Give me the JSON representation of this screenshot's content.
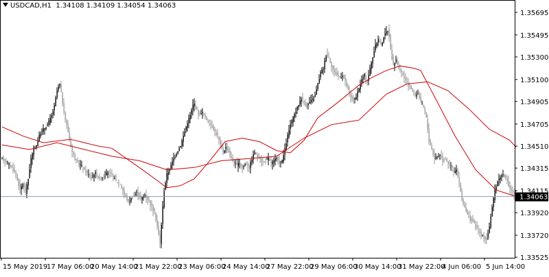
{
  "header": {
    "symbol": "USDCAD,H1",
    "open": "1.34108",
    "high": "1.34109",
    "low": "1.34054",
    "close": "1.34063"
  },
  "chart_data": {
    "type": "candlestick",
    "title": "USDCAD,H1",
    "grid": false,
    "ylim": [
      1.3352,
      1.3578
    ],
    "y_ticks": [
      "1.35695",
      "1.35495",
      "1.35300",
      "1.35100",
      "1.34905",
      "1.34705",
      "1.34510",
      "1.34315",
      "1.34115",
      "1.33920",
      "1.33720",
      "1.33525"
    ],
    "x_ticks": [
      "15 May 2019",
      "17 May 06:00",
      "20 May 14:00",
      "21 May 22:00",
      "23 May 06:00",
      "24 May 14:00",
      "27 May 22:00",
      "29 May 06:00",
      "30 May 14:00",
      "31 May 22:00",
      "4 Jun 06:00",
      "5 Jun 14:00"
    ],
    "current_price": "1.34063",
    "price_path": [
      [
        0,
        1.344
      ],
      [
        8,
        1.3436
      ],
      [
        14,
        1.3432
      ],
      [
        20,
        1.3426
      ],
      [
        26,
        1.3412
      ],
      [
        30,
        1.3418
      ],
      [
        34,
        1.341
      ],
      [
        38,
        1.3422
      ],
      [
        42,
        1.344
      ],
      [
        46,
        1.3448
      ],
      [
        50,
        1.3452
      ],
      [
        55,
        1.3462
      ],
      [
        60,
        1.3466
      ],
      [
        66,
        1.347
      ],
      [
        72,
        1.3478
      ],
      [
        76,
        1.3486
      ],
      [
        80,
        1.35
      ],
      [
        84,
        1.3506
      ],
      [
        87,
        1.3494
      ],
      [
        90,
        1.348
      ],
      [
        94,
        1.347
      ],
      [
        98,
        1.3458
      ],
      [
        102,
        1.3446
      ],
      [
        106,
        1.344
      ],
      [
        110,
        1.3436
      ],
      [
        115,
        1.3434
      ],
      [
        120,
        1.343
      ],
      [
        125,
        1.3426
      ],
      [
        130,
        1.3424
      ],
      [
        136,
        1.3427
      ],
      [
        142,
        1.3422
      ],
      [
        148,
        1.3424
      ],
      [
        154,
        1.3428
      ],
      [
        160,
        1.3424
      ],
      [
        166,
        1.342
      ],
      [
        172,
        1.3418
      ],
      [
        178,
        1.3408
      ],
      [
        184,
        1.3402
      ],
      [
        190,
        1.3406
      ],
      [
        196,
        1.341
      ],
      [
        202,
        1.3404
      ],
      [
        208,
        1.3408
      ],
      [
        214,
        1.3402
      ],
      [
        219,
        1.3396
      ],
      [
        223,
        1.339
      ],
      [
        227,
        1.3376
      ],
      [
        230,
        1.3365
      ],
      [
        233,
        1.339
      ],
      [
        236,
        1.3412
      ],
      [
        240,
        1.3426
      ],
      [
        245,
        1.3432
      ],
      [
        250,
        1.344
      ],
      [
        255,
        1.3446
      ],
      [
        260,
        1.3452
      ],
      [
        265,
        1.3462
      ],
      [
        270,
        1.3472
      ],
      [
        275,
        1.348
      ],
      [
        279,
        1.349
      ],
      [
        283,
        1.3484
      ],
      [
        287,
        1.3478
      ],
      [
        291,
        1.3482
      ],
      [
        296,
        1.3476
      ],
      [
        302,
        1.3472
      ],
      [
        308,
        1.3466
      ],
      [
        314,
        1.346
      ],
      [
        318,
        1.3452
      ],
      [
        322,
        1.3446
      ],
      [
        326,
        1.345
      ],
      [
        330,
        1.3446
      ],
      [
        334,
        1.344
      ],
      [
        338,
        1.3436
      ],
      [
        342,
        1.3434
      ],
      [
        346,
        1.3436
      ],
      [
        350,
        1.3432
      ],
      [
        355,
        1.3436
      ],
      [
        360,
        1.3432
      ],
      [
        364,
        1.344
      ],
      [
        368,
        1.3446
      ],
      [
        372,
        1.3442
      ],
      [
        376,
        1.344
      ],
      [
        380,
        1.3436
      ],
      [
        384,
        1.3438
      ],
      [
        388,
        1.344
      ],
      [
        392,
        1.3436
      ],
      [
        396,
        1.3438
      ],
      [
        400,
        1.344
      ],
      [
        404,
        1.3436
      ],
      [
        408,
        1.3438
      ],
      [
        412,
        1.3448
      ],
      [
        416,
        1.346
      ],
      [
        420,
        1.347
      ],
      [
        424,
        1.3476
      ],
      [
        428,
        1.3482
      ],
      [
        432,
        1.3488
      ],
      [
        436,
        1.3494
      ],
      [
        440,
        1.349
      ],
      [
        444,
        1.3486
      ],
      [
        448,
        1.349
      ],
      [
        452,
        1.3492
      ],
      [
        456,
        1.3496
      ],
      [
        460,
        1.3506
      ],
      [
        464,
        1.3516
      ],
      [
        468,
        1.352
      ],
      [
        472,
        1.3532
      ],
      [
        476,
        1.353
      ],
      [
        480,
        1.3522
      ],
      [
        484,
        1.3516
      ],
      [
        488,
        1.3514
      ],
      [
        492,
        1.3512
      ],
      [
        496,
        1.3514
      ],
      [
        500,
        1.3508
      ],
      [
        504,
        1.35
      ],
      [
        508,
        1.3494
      ],
      [
        512,
        1.3492
      ],
      [
        516,
        1.3494
      ],
      [
        520,
        1.3502
      ],
      [
        524,
        1.351
      ],
      [
        528,
        1.3514
      ],
      [
        532,
        1.3508
      ],
      [
        536,
        1.352
      ],
      [
        540,
        1.353
      ],
      [
        544,
        1.354
      ],
      [
        548,
        1.3546
      ],
      [
        552,
        1.354
      ],
      [
        556,
        1.3548
      ],
      [
        560,
        1.3552
      ],
      [
        563,
        1.3555
      ],
      [
        566,
        1.3536
      ],
      [
        570,
        1.3522
      ],
      [
        574,
        1.3528
      ],
      [
        578,
        1.352
      ],
      [
        582,
        1.3516
      ],
      [
        586,
        1.3512
      ],
      [
        590,
        1.3506
      ],
      [
        594,
        1.3504
      ],
      [
        598,
        1.35
      ],
      [
        602,
        1.3496
      ],
      [
        606,
        1.3498
      ],
      [
        610,
        1.349
      ],
      [
        614,
        1.3486
      ],
      [
        618,
        1.3476
      ],
      [
        622,
        1.3456
      ],
      [
        626,
        1.3448
      ],
      [
        630,
        1.344
      ],
      [
        634,
        1.3442
      ],
      [
        638,
        1.3444
      ],
      [
        642,
        1.3438
      ],
      [
        646,
        1.344
      ],
      [
        650,
        1.3436
      ],
      [
        654,
        1.3434
      ],
      [
        658,
        1.3428
      ],
      [
        662,
        1.343
      ],
      [
        666,
        1.3418
      ],
      [
        670,
        1.3404
      ],
      [
        674,
        1.3396
      ],
      [
        678,
        1.339
      ],
      [
        682,
        1.3386
      ],
      [
        686,
        1.3384
      ],
      [
        690,
        1.338
      ],
      [
        694,
        1.3376
      ],
      [
        698,
        1.3372
      ],
      [
        702,
        1.337
      ],
      [
        706,
        1.3368
      ],
      [
        710,
        1.338
      ],
      [
        714,
        1.3396
      ],
      [
        718,
        1.3412
      ],
      [
        722,
        1.342
      ],
      [
        726,
        1.3424
      ],
      [
        730,
        1.3426
      ],
      [
        734,
        1.3422
      ],
      [
        738,
        1.3416
      ],
      [
        742,
        1.3412
      ],
      [
        746,
        1.3408
      ],
      [
        749,
        1.34063
      ]
    ],
    "series": [
      {
        "color": "#cc0000",
        "values": [
          [
            0,
            1.3452
          ],
          [
            40,
            1.3448
          ],
          [
            80,
            1.3454
          ],
          [
            120,
            1.3448
          ],
          [
            160,
            1.3442
          ],
          [
            200,
            1.3438
          ],
          [
            240,
            1.343
          ],
          [
            280,
            1.3432
          ],
          [
            320,
            1.3438
          ],
          [
            360,
            1.344
          ],
          [
            400,
            1.3442
          ],
          [
            440,
            1.3458
          ],
          [
            480,
            1.347
          ],
          [
            520,
            1.3474
          ],
          [
            560,
            1.3497
          ],
          [
            590,
            1.3506
          ],
          [
            620,
            1.3508
          ],
          [
            650,
            1.35
          ],
          [
            680,
            1.3484
          ],
          [
            710,
            1.3466
          ],
          [
            740,
            1.3456
          ],
          [
            749,
            1.345
          ]
        ]
      },
      {
        "color": "#cc0000",
        "values": [
          [
            0,
            1.3468
          ],
          [
            30,
            1.346
          ],
          [
            60,
            1.3454
          ],
          [
            100,
            1.3457
          ],
          [
            140,
            1.3451
          ],
          [
            160,
            1.3449
          ],
          [
            200,
            1.3432
          ],
          [
            225,
            1.3421
          ],
          [
            240,
            1.3414
          ],
          [
            260,
            1.3416
          ],
          [
            280,
            1.3422
          ],
          [
            300,
            1.3436
          ],
          [
            325,
            1.3455
          ],
          [
            350,
            1.3458
          ],
          [
            375,
            1.3455
          ],
          [
            400,
            1.3447
          ],
          [
            420,
            1.3445
          ],
          [
            440,
            1.3456
          ],
          [
            460,
            1.3476
          ],
          [
            490,
            1.349
          ],
          [
            520,
            1.3505
          ],
          [
            540,
            1.3512
          ],
          [
            560,
            1.3518
          ],
          [
            580,
            1.3522
          ],
          [
            600,
            1.352
          ],
          [
            610,
            1.3518
          ],
          [
            630,
            1.3495
          ],
          [
            660,
            1.346
          ],
          [
            690,
            1.343
          ],
          [
            720,
            1.3412
          ],
          [
            749,
            1.34063
          ]
        ]
      }
    ]
  }
}
